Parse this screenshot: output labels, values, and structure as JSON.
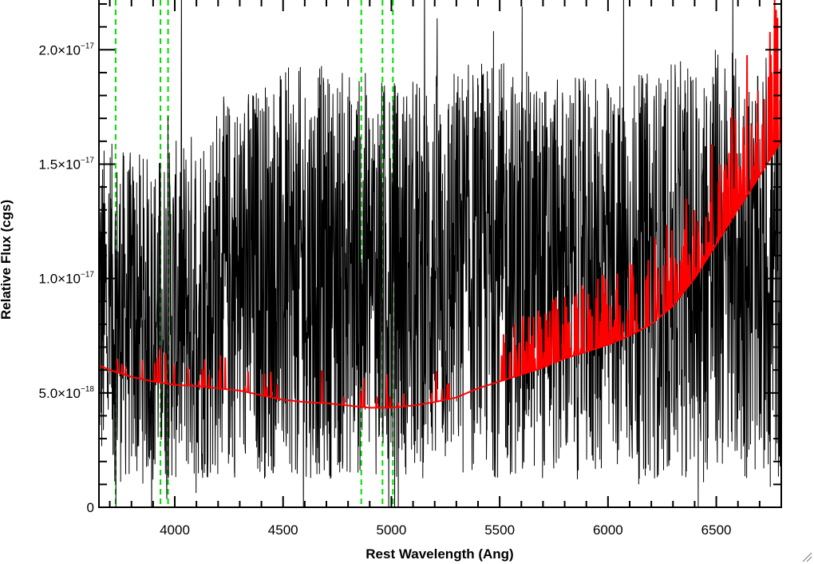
{
  "chart_data": {
    "type": "line",
    "title": "",
    "xlabel": "Rest Wavelength (Ang)",
    "ylabel": "Relative Flux (cgs)",
    "xlim": [
      3650,
      6800
    ],
    "ylim": [
      0,
      2.2e-17
    ],
    "grid": false,
    "x_ticks": [
      {
        "value": 4000,
        "label": "4000"
      },
      {
        "value": 4500,
        "label": "4500"
      },
      {
        "value": 5000,
        "label": "5000"
      },
      {
        "value": 5500,
        "label": "5500"
      },
      {
        "value": 6000,
        "label": "6000"
      },
      {
        "value": 6500,
        "label": "6500"
      }
    ],
    "y_ticks": [
      {
        "value": 0,
        "mantissa": "0",
        "exponent": ""
      },
      {
        "value": 5e-18,
        "mantissa": "5.0×10",
        "exponent": "−18"
      },
      {
        "value": 1e-17,
        "mantissa": "1.0×10",
        "exponent": "−17"
      },
      {
        "value": 1.5e-17,
        "mantissa": "1.5×10",
        "exponent": "−17"
      },
      {
        "value": 2e-17,
        "mantissa": "2.0×10",
        "exponent": "−17"
      }
    ],
    "vertical_lines": {
      "color": "#00dd00",
      "style": "dashed",
      "x": [
        3727,
        3934,
        3969,
        4861,
        4959,
        5007
      ]
    },
    "series": [
      {
        "color": "#000000",
        "style": "noisy spectrum",
        "noise_amplitude_fraction": 0.55,
        "x": [
          3650,
          3700,
          3800,
          3900,
          4000,
          4100,
          4200,
          4300,
          4400,
          4500,
          4600,
          4700,
          4800,
          4900,
          5000,
          5100,
          5200,
          5300,
          5400,
          5500,
          5600,
          5700,
          5800,
          5900,
          6000,
          6100,
          6200,
          6300,
          6400,
          6500,
          6600,
          6700,
          6800
        ],
        "values": [
          8.5e-18,
          8.5e-18,
          8.3e-18,
          8.2e-18,
          8.5e-18,
          9e-18,
          9.5e-18,
          9.8e-18,
          1e-17,
          1.02e-17,
          1.03e-17,
          1.03e-17,
          1.02e-17,
          1.01e-17,
          1e-17,
          1e-17,
          1.02e-17,
          1.03e-17,
          1.04e-17,
          1.04e-17,
          1.02e-17,
          1e-17,
          1e-17,
          1e-17,
          1e-17,
          1e-17,
          1.02e-17,
          1.03e-17,
          1.05e-17,
          1.08e-17,
          1.05e-17,
          1e-17,
          1e-17
        ]
      },
      {
        "color": "#ff0000",
        "style": "model spectrum",
        "x": [
          3650,
          3700,
          3800,
          3900,
          4000,
          4100,
          4200,
          4300,
          4400,
          4500,
          4600,
          4700,
          4800,
          4900,
          5000,
          5100,
          5200,
          5300,
          5400,
          5500,
          5600,
          5700,
          5800,
          5900,
          6000,
          6100,
          6200,
          6300,
          6400,
          6500,
          6600,
          6700,
          6800
        ],
        "values": [
          6.2e-18,
          6e-18,
          5.7e-18,
          5.5e-18,
          5.35e-18,
          5.3e-18,
          5.2e-18,
          5.1e-18,
          4.9e-18,
          4.7e-18,
          4.6e-18,
          4.55e-18,
          4.45e-18,
          4.35e-18,
          4.35e-18,
          4.45e-18,
          4.6e-18,
          4.8e-18,
          5.2e-18,
          5.5e-18,
          5.8e-18,
          6.1e-18,
          6.5e-18,
          6.8e-18,
          7.1e-18,
          7.5e-18,
          8e-18,
          8.8e-18,
          1e-17,
          1.15e-17,
          1.3e-17,
          1.45e-17,
          1.6e-17
        ]
      }
    ]
  }
}
